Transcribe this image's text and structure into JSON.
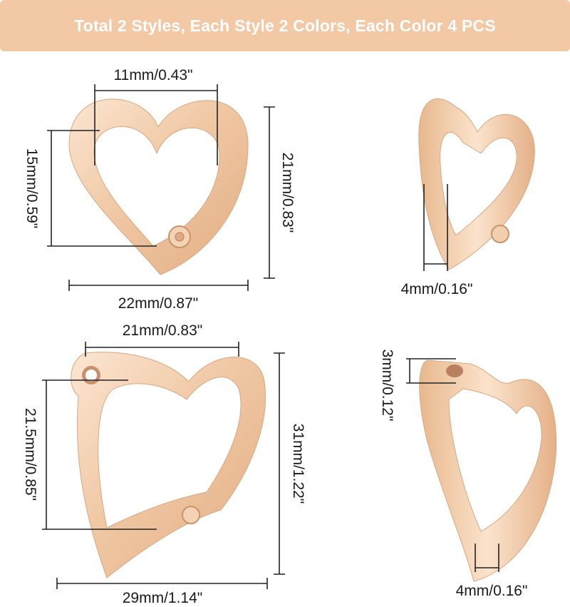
{
  "banner": {
    "text": "Total 2 Styles, Each Style 2 Colors, Each Color 4 PCS",
    "background": "#f2c9a4",
    "text_color": "#ffffff"
  },
  "product_color": "#f3cfae",
  "style1": {
    "inner_width": "11mm/0.43\"",
    "inner_height": "15mm/0.59\"",
    "outer_height": "21mm/0.83\"",
    "outer_width": "22mm/0.87\"",
    "thickness": "4mm/0.16\""
  },
  "style2": {
    "outer_top_width": "21mm/0.83\"",
    "inner_height": "21.5mm/0.85\"",
    "outer_height": "31mm/1.22\"",
    "outer_width": "29mm/1.14\"",
    "hole_diameter": "3mm/0.12\"",
    "thickness": "4mm/0.16\""
  }
}
